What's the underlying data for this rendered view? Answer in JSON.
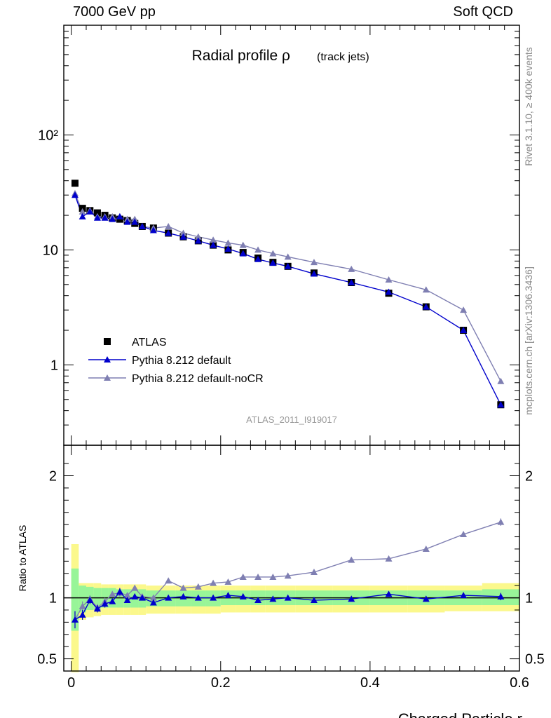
{
  "header": {
    "left": "7000 GeV pp",
    "right": "Soft QCD"
  },
  "side_labels": {
    "rivet": "Rivet 3.1.10, ≥ 400k events",
    "url": "mcplots.cern.ch [arXiv:1306.3436]"
  },
  "colors": {
    "atlas": "#000000",
    "default": "#0000cc",
    "nocr": "#7f7fb2",
    "band_inner": "#98f598",
    "band_outer": "#fbf88c"
  },
  "chart_data": [
    {
      "type": "line",
      "title": "Radial profile ρ",
      "title_suffix": "(track jets)",
      "watermark": "ATLAS_2011_I919017",
      "yscale": "log",
      "xlim": [
        -0.01,
        0.6
      ],
      "ylim": [
        0.2,
        900
      ],
      "yticks": [
        1,
        10,
        100
      ],
      "ytick_labels": [
        "1",
        "10",
        "10²"
      ],
      "legend_position": "lower-left",
      "x": [
        0.005,
        0.015,
        0.025,
        0.035,
        0.045,
        0.055,
        0.065,
        0.075,
        0.085,
        0.095,
        0.11,
        0.13,
        0.15,
        0.17,
        0.19,
        0.21,
        0.23,
        0.25,
        0.27,
        0.29,
        0.325,
        0.375,
        0.425,
        0.475,
        0.525,
        0.575
      ],
      "series": [
        {
          "name": "ATLAS",
          "marker": "square",
          "values": [
            38,
            23,
            22,
            21,
            20,
            19,
            18.5,
            18,
            17,
            16,
            15.5,
            14,
            13,
            12,
            11,
            10,
            9.5,
            8.5,
            7.8,
            7.2,
            6.3,
            5.2,
            4.2,
            3.2,
            2.0,
            0.45
          ]
        },
        {
          "name": "Pythia 8.212 default",
          "marker": "triangle",
          "values": [
            30,
            19.5,
            21.5,
            19,
            19,
            18.5,
            19.5,
            17.5,
            17.5,
            16,
            14.8,
            14,
            13,
            12,
            11,
            10.2,
            9.3,
            8.3,
            7.7,
            7.2,
            6.2,
            5.2,
            4.3,
            3.2,
            2.0,
            0.45
          ]
        },
        {
          "name": "Pythia 8.212 default-noCR",
          "marker": "triangle",
          "values": [
            31,
            21.5,
            22,
            19.5,
            19.5,
            19.5,
            19.5,
            18.5,
            18.5,
            16,
            15.5,
            16,
            14,
            13,
            12.2,
            11.5,
            11,
            10,
            9.3,
            8.7,
            7.8,
            6.8,
            5.5,
            4.5,
            3.0,
            0.72
          ]
        }
      ]
    },
    {
      "type": "line",
      "ylabel": "Ratio to ATLAS",
      "xlabel": "Charged Particle r",
      "xlim": [
        -0.01,
        0.6
      ],
      "ylim": [
        0.4,
        2.25
      ],
      "xticks": [
        0,
        0.2,
        0.4,
        0.6
      ],
      "xtick_labels": [
        "0",
        "0.2",
        "0.4",
        "0.6"
      ],
      "yticks": [
        0.5,
        1,
        2
      ],
      "ytick_labels": [
        "0.5",
        "1",
        "2"
      ],
      "x": [
        0.005,
        0.015,
        0.025,
        0.035,
        0.045,
        0.055,
        0.065,
        0.075,
        0.085,
        0.095,
        0.11,
        0.13,
        0.15,
        0.17,
        0.19,
        0.21,
        0.23,
        0.25,
        0.27,
        0.29,
        0.325,
        0.375,
        0.425,
        0.475,
        0.525,
        0.575
      ],
      "bins": [
        0,
        0.01,
        0.02,
        0.03,
        0.04,
        0.05,
        0.06,
        0.07,
        0.08,
        0.09,
        0.1,
        0.12,
        0.14,
        0.16,
        0.18,
        0.2,
        0.22,
        0.24,
        0.26,
        0.28,
        0.3,
        0.35,
        0.4,
        0.45,
        0.5,
        0.55,
        0.6
      ],
      "band_inner": [
        [
          0.73,
          1.24
        ],
        [
          0.88,
          1.1
        ],
        [
          0.9,
          1.09
        ],
        [
          0.91,
          1.08
        ],
        [
          0.92,
          1.08
        ],
        [
          0.92,
          1.08
        ],
        [
          0.92,
          1.07
        ],
        [
          0.92,
          1.07
        ],
        [
          0.92,
          1.07
        ],
        [
          0.92,
          1.07
        ],
        [
          0.93,
          1.06
        ],
        [
          0.93,
          1.06
        ],
        [
          0.93,
          1.06
        ],
        [
          0.93,
          1.06
        ],
        [
          0.93,
          1.06
        ],
        [
          0.94,
          1.06
        ],
        [
          0.94,
          1.06
        ],
        [
          0.94,
          1.06
        ],
        [
          0.94,
          1.06
        ],
        [
          0.94,
          1.06
        ],
        [
          0.94,
          1.06
        ],
        [
          0.94,
          1.06
        ],
        [
          0.94,
          1.06
        ],
        [
          0.94,
          1.06
        ],
        [
          0.94,
          1.06
        ],
        [
          0.94,
          1.07
        ]
      ],
      "band_outer": [
        [
          0.39,
          1.44
        ],
        [
          0.82,
          1.12
        ],
        [
          0.84,
          1.12
        ],
        [
          0.85,
          1.12
        ],
        [
          0.86,
          1.11
        ],
        [
          0.86,
          1.11
        ],
        [
          0.86,
          1.11
        ],
        [
          0.86,
          1.11
        ],
        [
          0.86,
          1.11
        ],
        [
          0.86,
          1.11
        ],
        [
          0.87,
          1.1
        ],
        [
          0.87,
          1.1
        ],
        [
          0.87,
          1.1
        ],
        [
          0.87,
          1.1
        ],
        [
          0.87,
          1.1
        ],
        [
          0.88,
          1.1
        ],
        [
          0.88,
          1.1
        ],
        [
          0.88,
          1.1
        ],
        [
          0.88,
          1.1
        ],
        [
          0.88,
          1.1
        ],
        [
          0.88,
          1.1
        ],
        [
          0.88,
          1.1
        ],
        [
          0.88,
          1.1
        ],
        [
          0.88,
          1.1
        ],
        [
          0.89,
          1.1
        ],
        [
          0.89,
          1.12
        ]
      ],
      "series": [
        {
          "name": "Pythia 8.212 default",
          "values": [
            0.82,
            0.86,
            0.98,
            0.91,
            0.95,
            0.97,
            1.05,
            0.98,
            1.01,
            1.0,
            0.96,
            1.0,
            1.01,
            1.0,
            1.0,
            1.02,
            1.01,
            0.98,
            0.99,
            1.0,
            0.98,
            0.99,
            1.03,
            0.99,
            1.02,
            1.01
          ],
          "errors": [
            0.07,
            0.04,
            0.03,
            0.03,
            0.03,
            0.02,
            0.03,
            0.02,
            0.02,
            0.02,
            0.01,
            0.01,
            0.01,
            0.01,
            0.01,
            0.01,
            0.01,
            0.01,
            0.01,
            0.01,
            0.01,
            0.01,
            0.01,
            0.01,
            0.02,
            0.03
          ]
        },
        {
          "name": "Pythia 8.212 default-noCR",
          "values": [
            0.82,
            0.93,
            0.99,
            0.92,
            0.97,
            1.03,
            1.04,
            1.02,
            1.08,
            1.01,
            1.0,
            1.14,
            1.08,
            1.09,
            1.12,
            1.13,
            1.17,
            1.17,
            1.17,
            1.18,
            1.21,
            1.31,
            1.32,
            1.4,
            1.52,
            1.62
          ],
          "errors": [
            0.07,
            0.04,
            0.03,
            0.03,
            0.03,
            0.02,
            0.03,
            0.02,
            0.02,
            0.02,
            0.01,
            0.01,
            0.01,
            0.01,
            0.01,
            0.01,
            0.01,
            0.01,
            0.01,
            0.01,
            0.01,
            0.01,
            0.01,
            0.01,
            0.02,
            0.03
          ]
        }
      ]
    }
  ]
}
